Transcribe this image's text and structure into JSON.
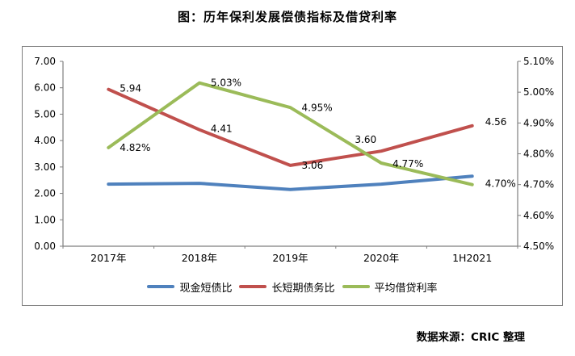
{
  "page": {
    "title": "图：历年保利发展偿债指标及借贷利率",
    "source": "数据来源：CRIC 整理"
  },
  "chart_data": {
    "type": "line",
    "title": "图：历年保利发展偿债指标及借贷利率",
    "categories": [
      "2017年",
      "2018年",
      "2019年",
      "2020年",
      "1H2021"
    ],
    "left_axis": {
      "min": 0.0,
      "max": 7.0,
      "tick_labels": [
        "7.00",
        "6.00",
        "5.00",
        "4.00",
        "3.00",
        "2.00",
        "1.00",
        "0.00"
      ]
    },
    "right_axis": {
      "min": 4.5,
      "max": 5.1,
      "unit": "%",
      "tick_labels": [
        "5.10%",
        "5.00%",
        "4.90%",
        "4.80%",
        "4.70%",
        "4.60%",
        "4.50%"
      ]
    },
    "series": [
      {
        "name": "现金短债比",
        "color": "#4F81BD",
        "axis": "left",
        "values": [
          2.35,
          2.38,
          2.15,
          2.35,
          2.65
        ],
        "data_labels": []
      },
      {
        "name": "长短期债务比",
        "color": "#C0504D",
        "axis": "left",
        "values": [
          5.94,
          4.41,
          3.06,
          3.6,
          4.56
        ],
        "data_labels": [
          "5.94",
          "4.41",
          "3.06",
          "3.60",
          "4.56"
        ]
      },
      {
        "name": "平均借贷利率",
        "color": "#9BBB59",
        "axis": "right",
        "values": [
          4.82,
          5.03,
          4.95,
          4.77,
          4.7
        ],
        "data_labels": [
          "4.82%",
          "5.03%",
          "4.95%",
          "4.77%",
          "4.70%"
        ]
      }
    ],
    "legend": {
      "position": "bottom",
      "entries": [
        "现金短债比",
        "长短期债务比",
        "平均借贷利率"
      ]
    },
    "grid": false,
    "axis_color": "#7f7f7f"
  }
}
